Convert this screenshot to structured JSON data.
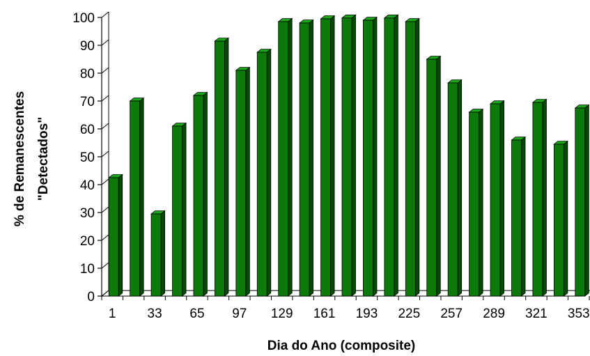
{
  "chart_data": {
    "type": "bar",
    "title": "",
    "xlabel": "Dia do Ano (composite)",
    "ylabel_lines": [
      "% de Remanescentes",
      "\"Detectados\""
    ],
    "ylim": [
      0,
      100
    ],
    "yticks": [
      0,
      10,
      20,
      30,
      40,
      50,
      60,
      70,
      80,
      90,
      100
    ],
    "x_tick_labels": [
      "1",
      "33",
      "65",
      "97",
      "129",
      "161",
      "193",
      "225",
      "257",
      "289",
      "321",
      "353"
    ],
    "categories": [
      "1",
      "17",
      "33",
      "49",
      "65",
      "81",
      "97",
      "113",
      "129",
      "145",
      "161",
      "177",
      "193",
      "209",
      "225",
      "241",
      "257",
      "273",
      "289",
      "305",
      "321",
      "337",
      "353"
    ],
    "values": [
      42.5,
      70,
      29.5,
      61,
      72,
      91.5,
      81,
      87.5,
      98.5,
      98,
      99.5,
      99.8,
      99,
      99.8,
      98.5,
      85,
      76.5,
      66,
      69,
      56,
      69.5,
      54.5,
      67.5
    ],
    "grid": false,
    "legend": "none",
    "colors": {
      "bar_front": "#0b7a0b",
      "bar_side": "#044a04",
      "bar_top": "#1aa51a",
      "outline": "#000000"
    }
  }
}
